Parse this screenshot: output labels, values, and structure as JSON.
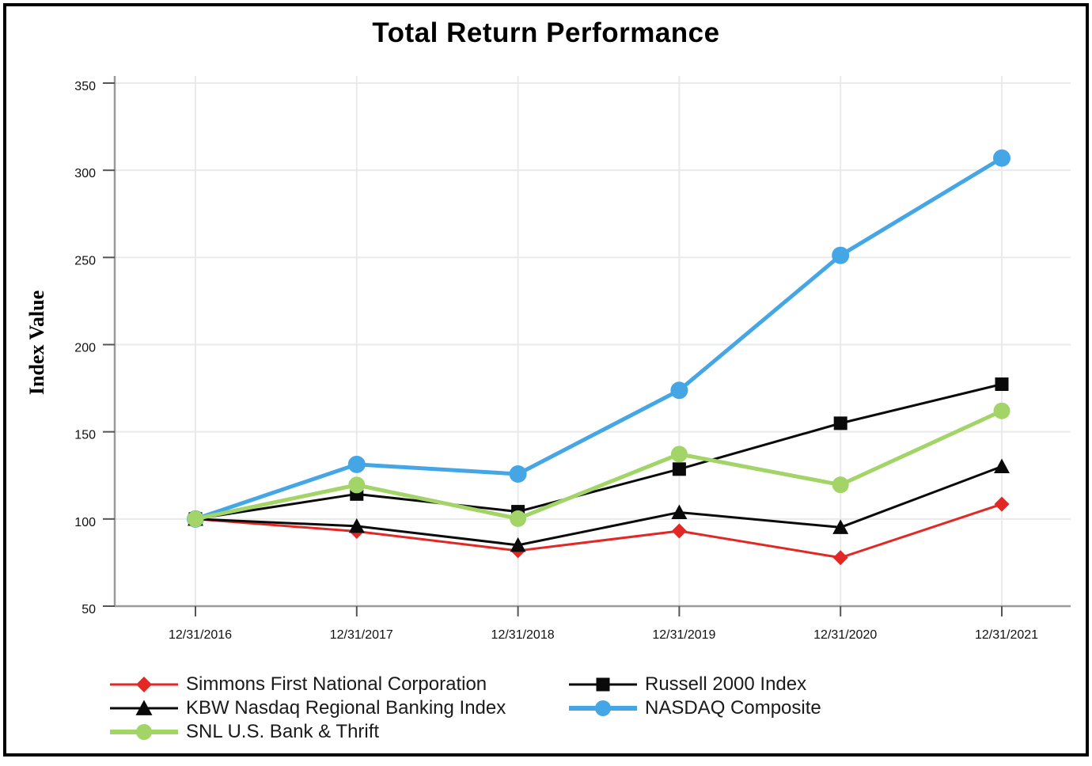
{
  "chart_data": {
    "type": "line",
    "title": "Total Return Performance",
    "xlabel": "",
    "ylabel": "Index Value",
    "ylim": [
      50,
      350
    ],
    "yticks": [
      50,
      100,
      150,
      200,
      250,
      300,
      350
    ],
    "grid": true,
    "legend_position": "bottom",
    "categories": [
      "12/31/2016",
      "12/31/2017",
      "12/31/2018",
      "12/31/2019",
      "12/31/2020",
      "12/31/2021"
    ],
    "series": [
      {
        "name": "Simmons First National Corporation",
        "marker": "diamond-marker-icon",
        "color": "#e22824",
        "values": [
          100,
          92.9,
          81.8,
          93.1,
          77.8,
          108.5
        ]
      },
      {
        "name": "Russell 2000 Index",
        "marker": "square-marker-icon",
        "color": "#0a0a0a",
        "values": [
          100,
          114.3,
          104.2,
          128.6,
          154.9,
          177.3
        ]
      },
      {
        "name": "KBW Nasdaq Regional Banking Index",
        "marker": "triangle-marker-icon",
        "color": "#0a0a0a",
        "values": [
          100,
          95.9,
          85.0,
          103.8,
          95.2,
          130.1
        ]
      },
      {
        "name": "NASDAQ Composite",
        "marker": "circle-marker-icon",
        "color": "#45a6e6",
        "values": [
          100,
          131.3,
          125.8,
          173.8,
          251.2,
          307.0
        ]
      },
      {
        "name": "SNL U.S. Bank & Thrift",
        "marker": "circle-marker-icon",
        "color": "#a2d468",
        "values": [
          100,
          119.5,
          100.2,
          137.2,
          119.6,
          162.0
        ]
      }
    ],
    "legend_columns": [
      [
        0,
        2,
        4
      ],
      [
        1,
        3
      ]
    ]
  }
}
